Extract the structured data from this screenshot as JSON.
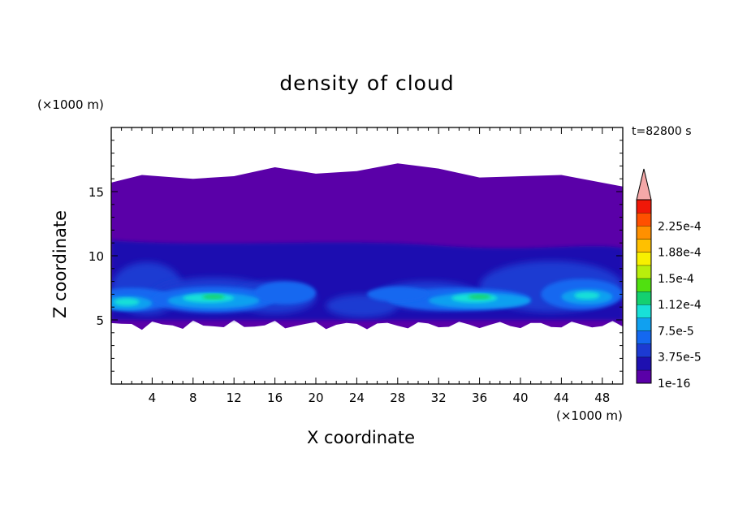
{
  "chart_data": {
    "type": "heatmap",
    "title": "density of cloud",
    "xlabel": "X coordinate",
    "ylabel": "Z coordinate",
    "x_unit": "(×1000 m)",
    "z_unit": "(×1000 m)",
    "time_label": "t=82800 s",
    "xlim": [
      0,
      50
    ],
    "ylim": [
      0,
      20
    ],
    "x_ticks": [
      4,
      8,
      12,
      16,
      20,
      24,
      28,
      32,
      36,
      40,
      44,
      48
    ],
    "y_ticks": [
      5,
      10,
      15
    ],
    "colorbar": {
      "tick_labels": [
        "2.25e-4",
        "1.88e-4",
        "1.5e-4",
        "1.12e-4",
        "7.5e-5",
        "3.75e-5",
        "1e-16"
      ],
      "colors": [
        "#5a00a8",
        "#1e10b0",
        "#1c3ad2",
        "#1468f0",
        "#10a0f0",
        "#18e0d8",
        "#14d070",
        "#50e010",
        "#b8ee0c",
        "#f8f000",
        "#ffc000",
        "#ff9000",
        "#ff5000",
        "#f01808"
      ],
      "overflow_color": "#f4a8a8"
    },
    "cloud_top_km": [
      15.7,
      16.3,
      16.0,
      16.2,
      16.9,
      16.4,
      16.6,
      17.2,
      16.8,
      16.1,
      16.3,
      15.4
    ],
    "cloud_top_x_km": [
      0,
      3,
      8,
      12,
      16,
      20,
      24,
      28,
      32,
      36,
      44,
      50
    ],
    "cloud_base_km": 4.6,
    "dense_layer": {
      "z_range_km": [
        5.3,
        7.8
      ],
      "peak_x_km": [
        10,
        36,
        46
      ],
      "peak_value": 0.00015
    }
  }
}
